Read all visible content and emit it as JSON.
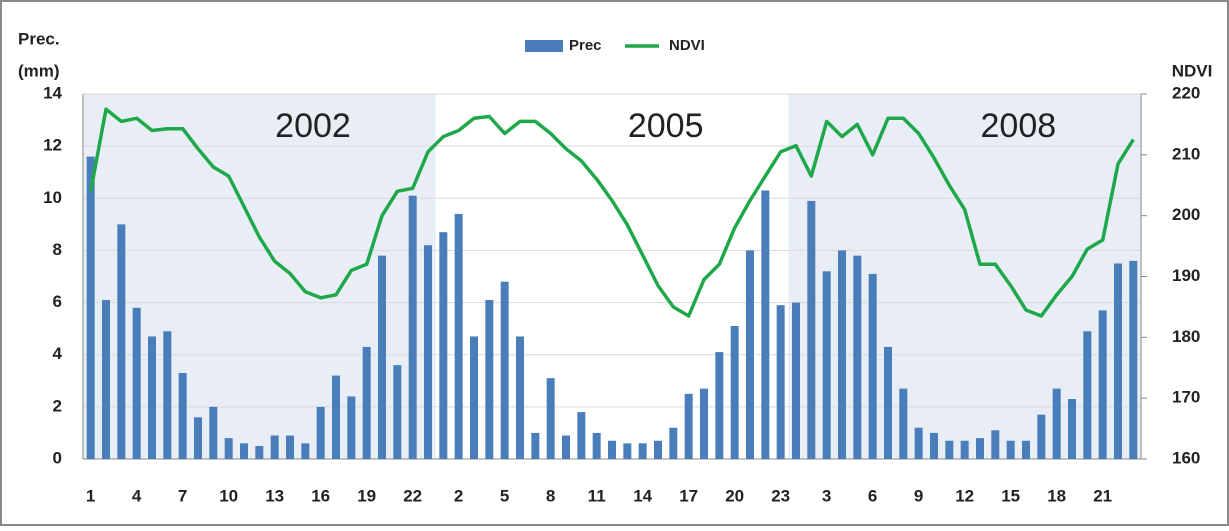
{
  "chart_data": {
    "type": "bar-line",
    "y_label": [
      "Prec.",
      "(mm)"
    ],
    "y2_label": "NDVI",
    "annotations": [
      "2002",
      "2005",
      "2008"
    ],
    "categories": [
      1,
      null,
      null,
      4,
      null,
      null,
      7,
      null,
      null,
      10,
      null,
      null,
      13,
      null,
      null,
      16,
      null,
      null,
      19,
      null,
      null,
      22,
      null,
      null,
      2,
      null,
      null,
      5,
      null,
      null,
      8,
      null,
      null,
      11,
      null,
      null,
      14,
      null,
      null,
      17,
      null,
      null,
      20,
      null,
      null,
      23,
      null,
      null,
      3,
      null,
      null,
      6,
      null,
      null,
      9,
      null,
      null,
      12,
      null,
      null,
      15,
      null,
      null,
      18,
      null,
      null,
      21,
      null,
      null
    ],
    "series": [
      {
        "name": "Prec",
        "color": "#4a7ebb",
        "axis": "y",
        "values": [
          11.6,
          6.1,
          9.0,
          5.8,
          4.7,
          4.9,
          3.3,
          1.6,
          2.0,
          0.8,
          0.6,
          0.5,
          0.9,
          0.9,
          0.6,
          2.0,
          3.2,
          2.4,
          4.3,
          7.8,
          3.6,
          10.1,
          8.2,
          8.7,
          9.4,
          4.7,
          6.1,
          6.8,
          4.7,
          1.0,
          3.1,
          0.9,
          1.8,
          1.0,
          0.7,
          0.6,
          0.6,
          0.7,
          1.2,
          2.5,
          2.7,
          4.1,
          5.1,
          8.0,
          10.3,
          5.9,
          6.0,
          9.9,
          7.2,
          8.0,
          7.8,
          7.1,
          4.3,
          2.7,
          1.2,
          1.0,
          0.7,
          0.7,
          0.8,
          1.1,
          0.7,
          0.7,
          1.7,
          2.7,
          2.3,
          4.9,
          5.7,
          7.5,
          7.6
        ]
      },
      {
        "name": "NDVI",
        "color": "#1fa84a",
        "axis": "y2",
        "values": [
          204,
          217.5,
          215.5,
          216,
          214,
          214.3,
          214.3,
          211,
          208,
          206.5,
          201.5,
          196.5,
          192.5,
          190.5,
          187.5,
          186.5,
          187,
          191,
          192,
          200,
          204,
          204.5,
          210.5,
          213,
          214,
          216,
          216.3,
          213.5,
          215.5,
          215.5,
          213.5,
          211,
          209,
          206,
          202.5,
          198.5,
          193.5,
          188.5,
          185,
          183.5,
          189.5,
          192,
          198,
          202.5,
          206.5,
          210.5,
          211.5,
          206.5,
          215.5,
          213,
          215,
          210,
          216,
          216,
          213.5,
          209.5,
          205,
          201,
          192,
          192,
          188.5,
          184.5,
          183.5,
          187,
          190,
          194.5,
          196,
          208.5,
          212.5
        ]
      }
    ],
    "ylim": [
      0,
      14
    ],
    "yticks": [
      0,
      2,
      4,
      6,
      8,
      10,
      12,
      14
    ],
    "y2lim": [
      160,
      220
    ],
    "y2ticks": [
      160,
      170,
      180,
      190,
      200,
      210,
      220
    ],
    "grid": true
  }
}
